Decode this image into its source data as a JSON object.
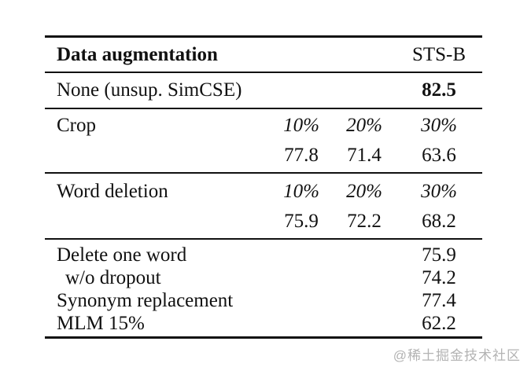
{
  "table": {
    "header": {
      "col_label": "Data augmentation",
      "col_value": "STS-B"
    },
    "baseline": {
      "label": "None (unsup. SimCSE)",
      "value": "82.5"
    },
    "crop": {
      "label": "Crop",
      "rates": [
        "10%",
        "20%",
        "30%"
      ],
      "values": [
        "77.8",
        "71.4",
        "63.6"
      ]
    },
    "word_deletion": {
      "label": "Word deletion",
      "rates": [
        "10%",
        "20%",
        "30%"
      ],
      "values": [
        "75.9",
        "72.2",
        "68.2"
      ]
    },
    "other_rows": [
      {
        "label": "Delete one word",
        "value": "75.9"
      },
      {
        "label": "w/o dropout",
        "value": "74.2"
      },
      {
        "label": "Synonym replacement",
        "value": "77.4"
      },
      {
        "label": "MLM 15%",
        "value": "62.2"
      }
    ]
  },
  "watermark": "@稀土掘金技术社区",
  "colors": {
    "text": "#111111",
    "rule": "#111111",
    "watermark_gray": "#b3b3b3",
    "background": "#ffffff"
  }
}
